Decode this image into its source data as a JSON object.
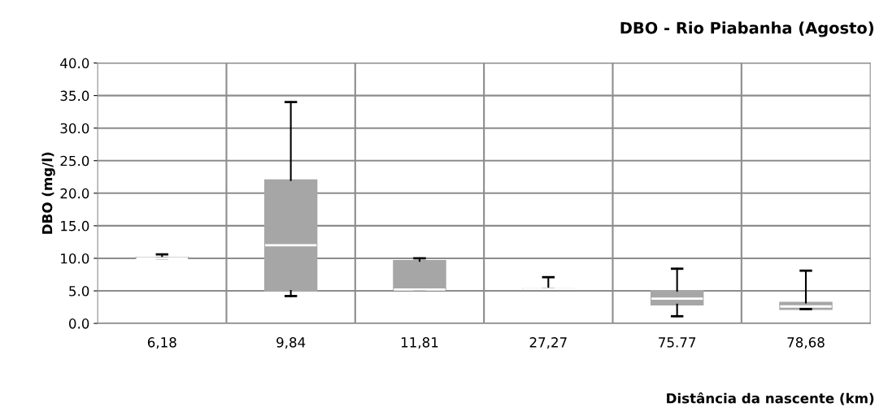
{
  "chart_data": {
    "type": "box",
    "title": "DBO - Rio Piabanha (Agosto)",
    "xlabel": "Distância da nascente (km)",
    "ylabel": "DBO (mg/l)",
    "categories": [
      "6,18",
      "9,84",
      "11,81",
      "27,27",
      "75.77",
      "78,68"
    ],
    "boxes": [
      {
        "low": 10.0,
        "q1": 10.0,
        "median": 10.0,
        "q3": 10.1,
        "high": 10.6
      },
      {
        "low": 4.2,
        "q1": 5.0,
        "median": 12.0,
        "q3": 22.0,
        "high": 34.0
      },
      {
        "low": 5.2,
        "q1": 5.2,
        "median": 5.2,
        "q3": 9.6,
        "high": 10.0
      },
      {
        "low": 5.3,
        "q1": 5.3,
        "median": 5.3,
        "q3": 5.3,
        "high": 7.1
      },
      {
        "low": 1.1,
        "q1": 2.9,
        "median": 3.8,
        "q3": 5.0,
        "high": 8.4
      },
      {
        "low": 2.2,
        "q1": 2.2,
        "median": 2.6,
        "q3": 3.2,
        "high": 8.1
      }
    ],
    "color": "#a6a6a6",
    "ylim": [
      0,
      40
    ],
    "yticks": [
      {
        "value": 0,
        "label": "0.0"
      },
      {
        "value": 5,
        "label": "5.0"
      },
      {
        "value": 10,
        "label": "10.0"
      },
      {
        "value": 15,
        "label": "15.0"
      },
      {
        "value": 20,
        "label": "20.0"
      },
      {
        "value": 25,
        "label": "25.0"
      },
      {
        "value": 30,
        "label": "30.0"
      },
      {
        "value": 35,
        "label": "35.0"
      },
      {
        "value": 40,
        "label": "40.0"
      }
    ],
    "grid": true
  }
}
